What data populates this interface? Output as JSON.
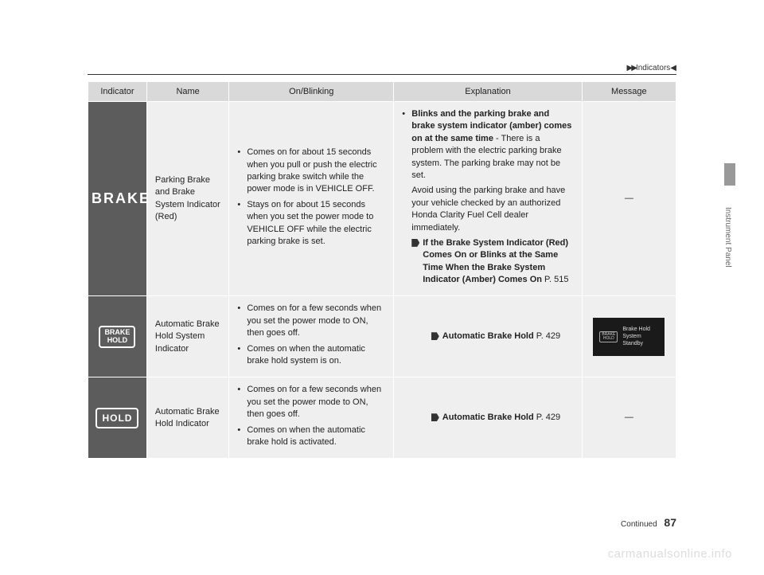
{
  "header": {
    "arrows": "▶▶",
    "section": "Indicators",
    "trail_arrow": "◀"
  },
  "side_label": "Instrument Panel",
  "footer": {
    "continued": "Continued",
    "page_number": "87"
  },
  "watermark": "carmanualsonline.info",
  "table": {
    "columns": [
      "Indicator",
      "Name",
      "On/Blinking",
      "Explanation",
      "Message"
    ],
    "col_widths": [
      "10%",
      "14%",
      "28%",
      "32%",
      "16%"
    ],
    "rows": [
      {
        "icon_type": "brake_text",
        "icon_text": "BRAKE",
        "name": "Parking Brake and Brake System Indicator (Red)",
        "on_blinking": [
          "Comes on for about 15 seconds when you pull or push the electric parking brake switch while the power mode is in VEHICLE OFF.",
          "Stays on for about 15 seconds when you set the power mode to VEHICLE OFF while the electric parking brake is set."
        ],
        "explanation_lead_bold": "Blinks and the parking brake and brake system indicator (amber) comes on at the same time",
        "explanation_lead_rest": " - There is a problem with the electric parking brake system. The parking brake may not be set.",
        "explanation_body": "Avoid using the parking brake and have your vehicle checked by an authorized Honda Clarity Fuel Cell dealer immediately.",
        "explanation_ref_bold": "If the Brake System Indicator (Red) Comes On or Blinks at the Same Time When the Brake System Indicator (Amber) Comes On",
        "explanation_ref_page": " P. 515",
        "message_type": "dash",
        "message_dash": "—"
      },
      {
        "icon_type": "brake_hold_box",
        "icon_line1": "BRAKE",
        "icon_line2": "HOLD",
        "name": "Automatic Brake Hold System Indicator",
        "on_blinking": [
          "Comes on for a few seconds when you set the power mode to ON, then goes off.",
          "Comes on when the automatic brake hold system is on."
        ],
        "explanation_ref_bold": "Automatic Brake Hold",
        "explanation_ref_page": " P. 429",
        "message_type": "display",
        "message_icon_l1": "BRAKE",
        "message_icon_l2": "HOLD",
        "message_text_l1": "Brake Hold",
        "message_text_l2": "System",
        "message_text_l3": "Standby"
      },
      {
        "icon_type": "hold_box",
        "icon_text": "HOLD",
        "name": "Automatic Brake Hold Indicator",
        "on_blinking": [
          "Comes on for a few seconds when you set the power mode to ON, then goes off.",
          "Comes on when the automatic brake hold is activated."
        ],
        "explanation_ref_bold": "Automatic Brake Hold",
        "explanation_ref_page": " P. 429",
        "message_type": "dash",
        "message_dash": "—"
      }
    ]
  }
}
